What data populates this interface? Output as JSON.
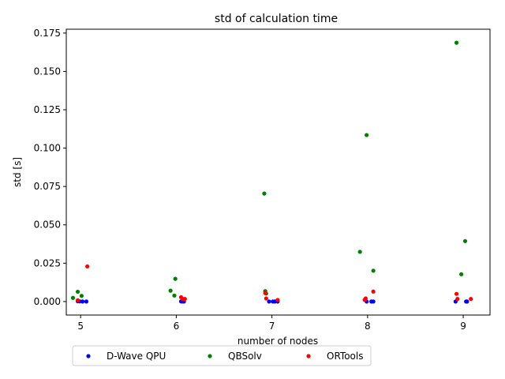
{
  "chart_data": {
    "type": "scatter",
    "title": "std of calculation time",
    "xlabel": "number of nodes",
    "ylabel": "std [s]",
    "xlim": [
      4.85,
      9.28
    ],
    "ylim": [
      -0.0088,
      0.1775
    ],
    "xticks": [
      5,
      6,
      7,
      8,
      9
    ],
    "yticks": [
      0.0,
      0.025,
      0.05,
      0.075,
      0.1,
      0.125,
      0.15,
      0.175
    ],
    "ytick_labels": [
      "0.000",
      "0.025",
      "0.050",
      "0.075",
      "0.100",
      "0.125",
      "0.150",
      "0.175"
    ],
    "grid": false,
    "legend_position": "bottom-center, below axes, 3 columns",
    "series": [
      {
        "name": "D-Wave QPU",
        "color": "#0000ff",
        "points": [
          [
            4.97,
            0.0002
          ],
          [
            4.99,
            0.0001
          ],
          [
            5.02,
            0.0
          ],
          [
            5.06,
            0.0
          ],
          [
            6.05,
            0.0001
          ],
          [
            6.06,
            0.0
          ],
          [
            6.08,
            0.0
          ],
          [
            6.97,
            0.0
          ],
          [
            7.01,
            0.0
          ],
          [
            7.03,
            0.0
          ],
          [
            7.06,
            0.0
          ],
          [
            7.99,
            0.0
          ],
          [
            8.04,
            0.0
          ],
          [
            8.06,
            0.0
          ],
          [
            8.92,
            0.0
          ],
          [
            9.03,
            0.0
          ],
          [
            9.04,
            0.0
          ]
        ]
      },
      {
        "name": "QBSolv",
        "color": "#008000",
        "points": [
          [
            4.92,
            0.0024
          ],
          [
            4.97,
            0.0064
          ],
          [
            5.01,
            0.0037
          ],
          [
            5.94,
            0.0071
          ],
          [
            5.98,
            0.0039
          ],
          [
            5.99,
            0.0148
          ],
          [
            6.92,
            0.0704
          ],
          [
            6.93,
            0.0068
          ],
          [
            6.94,
            0.0052
          ],
          [
            7.92,
            0.0324
          ],
          [
            7.99,
            0.1085
          ],
          [
            8.06,
            0.0201
          ],
          [
            8.93,
            0.1687
          ],
          [
            8.98,
            0.0178
          ],
          [
            9.02,
            0.0394
          ]
        ]
      },
      {
        "name": "ORTools",
        "color": "#ff0000",
        "points": [
          [
            4.97,
            0.0008
          ],
          [
            5.07,
            0.0229
          ],
          [
            6.05,
            0.0028
          ],
          [
            6.07,
            0.0017
          ],
          [
            6.09,
            0.0017
          ],
          [
            6.93,
            0.0056
          ],
          [
            6.94,
            0.002
          ],
          [
            7.06,
            0.001
          ],
          [
            7.97,
            0.0011
          ],
          [
            7.98,
            0.002
          ],
          [
            8.06,
            0.0065
          ],
          [
            8.93,
            0.005
          ],
          [
            8.94,
            0.0017
          ],
          [
            9.08,
            0.0017
          ]
        ]
      }
    ]
  }
}
